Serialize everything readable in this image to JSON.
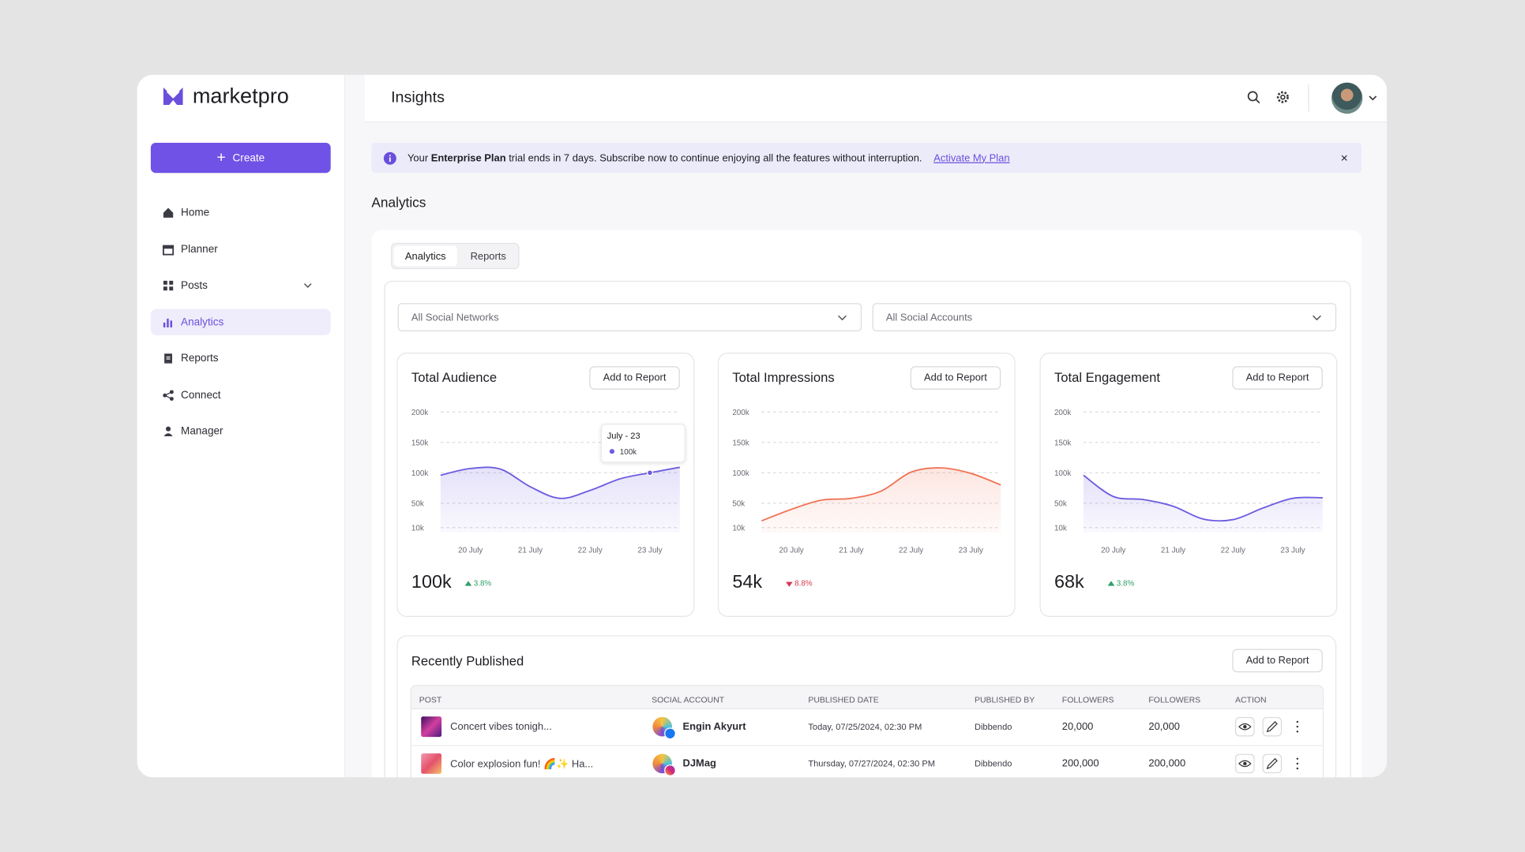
{
  "sidebar": {
    "logo": "marketpro",
    "create": "Create",
    "nav": [
      "Home",
      "Planner",
      "Posts",
      "Analytics",
      "Reports",
      "Connect",
      "Manager"
    ]
  },
  "header": {
    "title": "Insights"
  },
  "banner": {
    "text_before": "Your",
    "plan": "Enterprise Plan",
    "text_after": "trial ends in 7 days. Subscribe now to continue enjoying all the features without interruption.",
    "link": "Activate My Plan"
  },
  "section_title": "Analytics",
  "tabs": [
    "Analytics",
    "Reports"
  ],
  "filters": [
    "All Social Networks",
    "All Social Accounts"
  ],
  "chart_data": [
    {
      "type": "line",
      "title": "Total Audience",
      "button": "Add to Report",
      "total": "100k",
      "change": "3.8%",
      "trend": "up",
      "categories": [
        null,
        "20 July",
        null,
        "21 July",
        null,
        "22 July",
        null,
        "23 July",
        null
      ],
      "series": [
        {
          "color": "#6c5ce0",
          "values": [
            96000,
            107000,
            106000,
            77000,
            58000,
            71000,
            90000,
            100000,
            109000
          ]
        }
      ],
      "ylim": [
        10000,
        200000
      ],
      "yticks": [
        {
          "value": 10000,
          "label": "10k"
        },
        {
          "value": 50000,
          "label": "50k"
        },
        {
          "value": 100000,
          "label": "100k"
        },
        {
          "value": 150000,
          "label": "150k"
        },
        {
          "value": 200000,
          "label": "200k"
        }
      ],
      "grid": true,
      "tooltip": {
        "label": "July - 23",
        "value": 100000,
        "value_label": "100k"
      }
    },
    {
      "type": "line",
      "title": "Total Impressions",
      "button": "Add to Report",
      "total": "54k",
      "change": "8.8%",
      "trend": "down",
      "categories": [
        null,
        "20 July",
        null,
        "21 July",
        null,
        "22 July",
        null,
        "23 July",
        null
      ],
      "series": [
        {
          "color": "#f07456",
          "values": [
            21000,
            40000,
            55000,
            58000,
            70000,
            101000,
            108000,
            99000,
            80000
          ]
        }
      ],
      "ylim": [
        10000,
        200000
      ],
      "yticks": [
        {
          "value": 10000,
          "label": "10k"
        },
        {
          "value": 50000,
          "label": "50k"
        },
        {
          "value": 100000,
          "label": "100k"
        },
        {
          "value": 150000,
          "label": "150k"
        },
        {
          "value": 200000,
          "label": "200k"
        }
      ],
      "grid": true
    },
    {
      "type": "line",
      "title": "Total Engagement",
      "button": "Add to Report",
      "total": "68k",
      "change": "3.8%",
      "trend": "up",
      "categories": [
        null,
        "20 July",
        null,
        "21 July",
        null,
        "22 July",
        null,
        "23 July",
        null
      ],
      "series": [
        {
          "color": "#6c5ce0",
          "values": [
            96000,
            61000,
            56000,
            45000,
            24000,
            23000,
            42000,
            58000,
            59000
          ]
        }
      ],
      "ylim": [
        10000,
        200000
      ],
      "yticks": [
        {
          "value": 10000,
          "label": "10k"
        },
        {
          "value": 50000,
          "label": "50k"
        },
        {
          "value": 100000,
          "label": "100k"
        },
        {
          "value": 150000,
          "label": "150k"
        },
        {
          "value": 200000,
          "label": "200k"
        }
      ],
      "grid": true
    }
  ],
  "recent": {
    "title": "Recently Published",
    "button": "Add to Report",
    "columns": [
      "POST",
      "SOCIAL ACCOUNT",
      "PUBLISHED DATE",
      "PUBLISHED BY",
      "FOLLOWERS",
      "FOLLOWERS",
      "ACTION"
    ],
    "rows": [
      [
        "Concert vibes tonigh...",
        "Engin Akyurt",
        "Today, 07/25/2024, 02:30 PM",
        "Dibbendo",
        "20,000",
        "20,000"
      ],
      [
        "Color explosion fun! 🌈✨ Ha...",
        "DJMag",
        "Thursday, 07/27/2024, 02:30 PM",
        "Dibbendo",
        "200,000",
        "200,000"
      ]
    ]
  }
}
